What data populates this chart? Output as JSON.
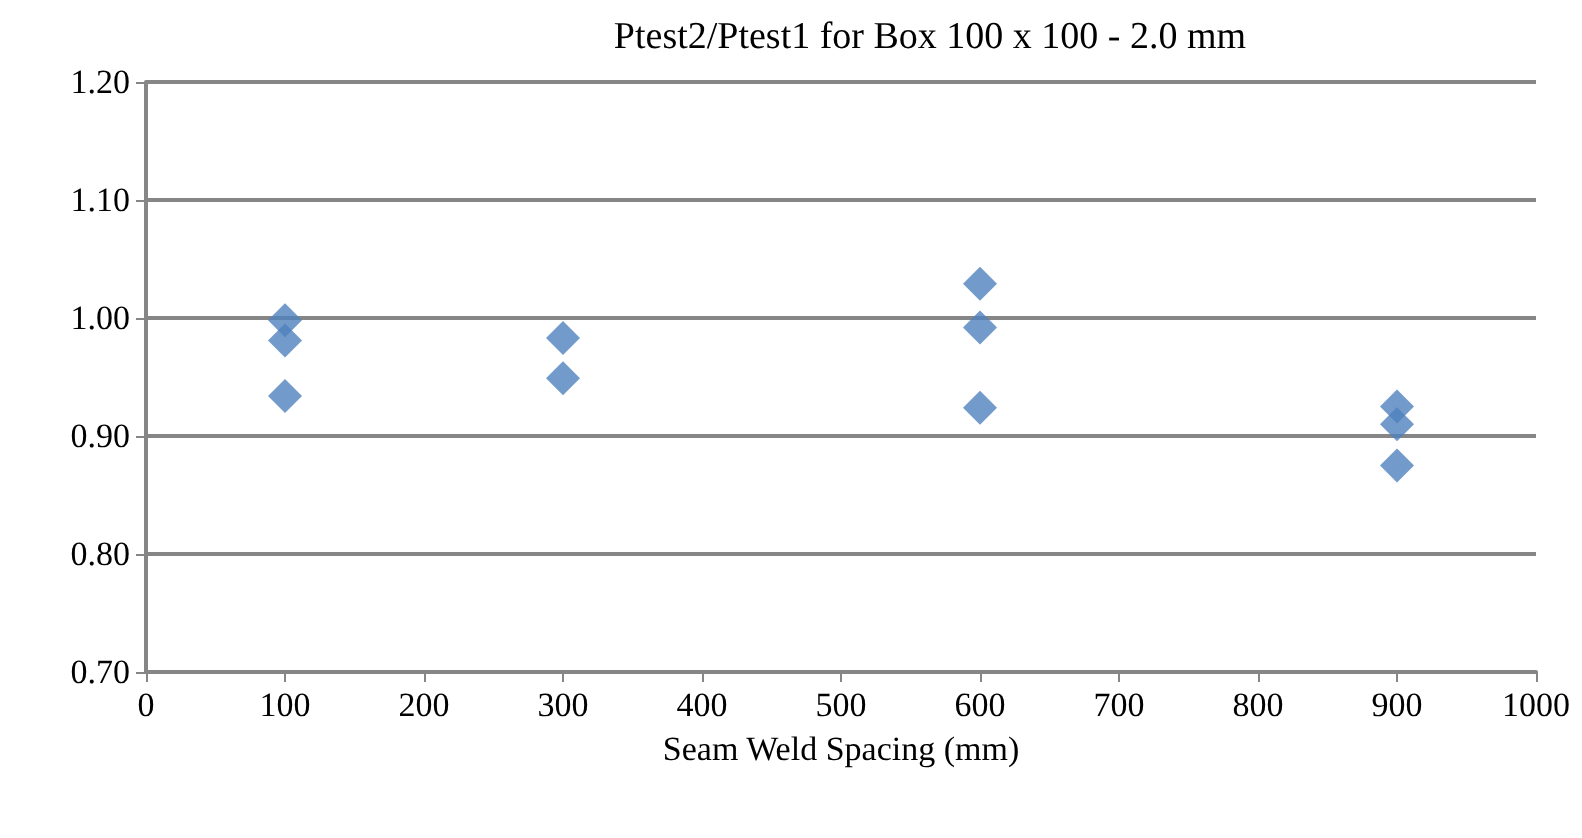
{
  "chart_data": {
    "type": "scatter",
    "title": "Ptest2/Ptest1 for Box 100 x 100 - 2.0 mm",
    "xlabel": "Seam Weld Spacing (mm)",
    "x": [
      100,
      100,
      100,
      300,
      300,
      600,
      600,
      600,
      900,
      900,
      900
    ],
    "values": [
      0.998,
      0.981,
      0.934,
      0.983,
      0.949,
      1.029,
      0.992,
      0.924,
      0.925,
      0.91,
      0.875
    ],
    "color": "#4f81bd",
    "marker": "diamond",
    "xlim": [
      0,
      1000
    ],
    "xticks": [
      0,
      100,
      200,
      300,
      400,
      500,
      600,
      700,
      800,
      900,
      1000
    ],
    "ylim": [
      0.7,
      1.2
    ],
    "yticks": [
      {
        "value": 0.7,
        "label": "0.70"
      },
      {
        "value": 0.8,
        "label": "0.80"
      },
      {
        "value": 0.9,
        "label": "0.90"
      },
      {
        "value": 1.0,
        "label": "1.00"
      },
      {
        "value": 1.1,
        "label": "1.10"
      },
      {
        "value": 1.2,
        "label": "1.20"
      }
    ],
    "grid": "y"
  }
}
